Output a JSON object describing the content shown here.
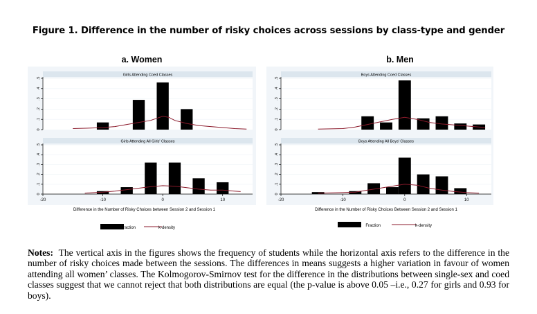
{
  "figure_title": "Figure 1. Difference in the number of risky choices across sessions by class-type and gender",
  "notes": {
    "label": "Notes:",
    "text": "The vertical axis in the figures shows the frequency of students while the horizontal axis refers to the difference in the number of risky choices made between the sessions. The differences in means suggests a higher variation in favour of women attending all women’ classes.  The Kolmogorov-Smirnov test for the difference in the distributions between single-sex and coed classes suggest that we cannot reject that both distributions are equal (the p-value is above 0.05 –i.e., 0.27 for girls and 0.93 for boys)."
  },
  "colors": {
    "bar": "#000000",
    "kdensity": "#8b1a2b",
    "strip": "#dce6ee",
    "panel_bg": "#f1f5f9",
    "grid": "#ffffff",
    "axis": "#000000"
  },
  "chart_data": [
    {
      "type": "bar",
      "title": "a. Women",
      "xlabel": "Difference in the Number of Risky Choices between Session 2 and Session 1",
      "legend": [
        "Fraction",
        "k-density"
      ],
      "xlim": [
        -20,
        15
      ],
      "xticks": [
        -20,
        -10,
        0,
        10
      ],
      "ylim": [
        0,
        0.5
      ],
      "yticks": [
        "0",
        ".1",
        ".2",
        ".3",
        ".4",
        ".5"
      ],
      "bin_width": 2,
      "panels": [
        {
          "title": "Girls Attending Coed Classes",
          "bars": [
            {
              "x": -10,
              "y": 0.07
            },
            {
              "x": -4,
              "y": 0.29
            },
            {
              "x": 0,
              "y": 0.46
            },
            {
              "x": 4,
              "y": 0.2
            }
          ],
          "kdensity": [
            [
              -15,
              0.01
            ],
            [
              -12,
              0.015
            ],
            [
              -10,
              0.02
            ],
            [
              -8,
              0.03
            ],
            [
              -6,
              0.05
            ],
            [
              -4,
              0.07
            ],
            [
              -2,
              0.09
            ],
            [
              -1,
              0.11
            ],
            [
              0,
              0.13
            ],
            [
              1,
              0.12
            ],
            [
              2,
              0.09
            ],
            [
              4,
              0.06
            ],
            [
              6,
              0.04
            ],
            [
              8,
              0.03
            ],
            [
              10,
              0.02
            ],
            [
              12,
              0.01
            ],
            [
              14,
              0.005
            ]
          ]
        },
        {
          "title": "Girls Attending All Girls' Classes",
          "bars": [
            {
              "x": -10,
              "y": 0.03
            },
            {
              "x": -6,
              "y": 0.07
            },
            {
              "x": -2,
              "y": 0.32
            },
            {
              "x": 2,
              "y": 0.32
            },
            {
              "x": 6,
              "y": 0.16
            },
            {
              "x": 10,
              "y": 0.12
            }
          ],
          "kdensity": [
            [
              -13,
              0.01
            ],
            [
              -10,
              0.02
            ],
            [
              -8,
              0.03
            ],
            [
              -6,
              0.045
            ],
            [
              -4,
              0.06
            ],
            [
              -2,
              0.075
            ],
            [
              0,
              0.085
            ],
            [
              2,
              0.08
            ],
            [
              4,
              0.065
            ],
            [
              6,
              0.05
            ],
            [
              8,
              0.04
            ],
            [
              10,
              0.04
            ],
            [
              12,
              0.03
            ],
            [
              13,
              0.025
            ]
          ]
        }
      ]
    },
    {
      "type": "bar",
      "title": "b. Men",
      "xlabel": "Difference in the Number of Risky Choices Between Session 2 and Session 1",
      "legend": [
        "Fraction",
        "k-density"
      ],
      "xlim": [
        -20,
        14
      ],
      "xticks": [
        -20,
        -10,
        0,
        10
      ],
      "ylim": [
        0,
        0.5
      ],
      "yticks": [
        "0",
        ".1",
        ".2",
        ".3",
        ".4",
        ".5"
      ],
      "bin_width": 2,
      "panels": [
        {
          "title": "Boys Attending Coed Classes",
          "bars": [
            {
              "x": -6,
              "y": 0.13
            },
            {
              "x": -3,
              "y": 0.07
            },
            {
              "x": 0,
              "y": 0.48
            },
            {
              "x": 3,
              "y": 0.11
            },
            {
              "x": 6,
              "y": 0.13
            },
            {
              "x": 9,
              "y": 0.06
            },
            {
              "x": 12,
              "y": 0.05
            }
          ],
          "kdensity": [
            [
              -14,
              0.005
            ],
            [
              -10,
              0.01
            ],
            [
              -8,
              0.025
            ],
            [
              -6,
              0.05
            ],
            [
              -4,
              0.075
            ],
            [
              -2,
              0.1
            ],
            [
              0,
              0.12
            ],
            [
              2,
              0.1
            ],
            [
              4,
              0.07
            ],
            [
              6,
              0.055
            ],
            [
              8,
              0.045
            ],
            [
              10,
              0.035
            ],
            [
              12,
              0.025
            ],
            [
              13,
              0.02
            ]
          ]
        },
        {
          "title": "Boys Attending All Boys' Classes",
          "bars": [
            {
              "x": -14,
              "y": 0.02
            },
            {
              "x": -8,
              "y": 0.03
            },
            {
              "x": -5,
              "y": 0.11
            },
            {
              "x": -2,
              "y": 0.07
            },
            {
              "x": 0,
              "y": 0.37
            },
            {
              "x": 3,
              "y": 0.2
            },
            {
              "x": 6,
              "y": 0.18
            },
            {
              "x": 9,
              "y": 0.06
            }
          ],
          "kdensity": [
            [
              -14,
              0.01
            ],
            [
              -10,
              0.015
            ],
            [
              -8,
              0.02
            ],
            [
              -6,
              0.04
            ],
            [
              -4,
              0.06
            ],
            [
              -2,
              0.08
            ],
            [
              0,
              0.1
            ],
            [
              2,
              0.09
            ],
            [
              4,
              0.06
            ],
            [
              6,
              0.04
            ],
            [
              8,
              0.025
            ],
            [
              10,
              0.015
            ],
            [
              12,
              0.01
            ]
          ]
        }
      ]
    }
  ]
}
